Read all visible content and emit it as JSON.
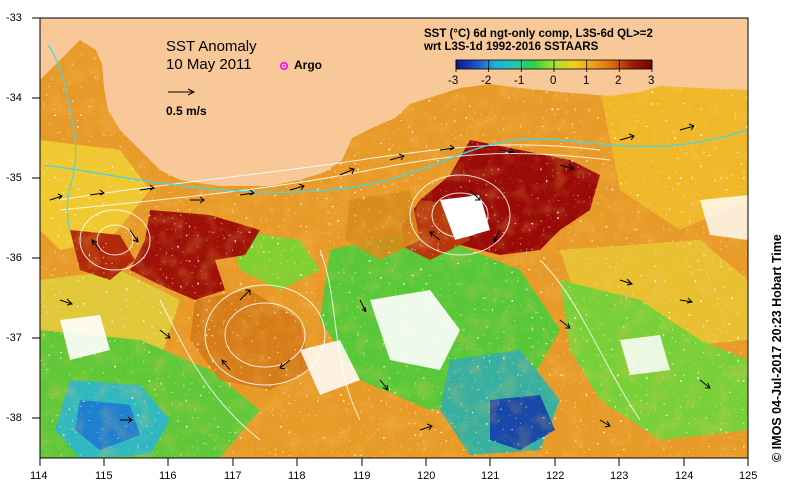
{
  "map": {
    "title": "SST Anomaly",
    "date": "10 May 2011",
    "argo_label": "Argo",
    "velocity_scale_label": "0.5 m/s",
    "product_line": "SST (°C) 6d ngt-only comp, L3S-6d QL>=2",
    "reference_line": "wrt L3S-1d 1992-2016 SSTAARS",
    "credit": "©  IMOS 04-Jul-2017 20:23 Hobart Time",
    "lon_ticks": [
      "114",
      "115",
      "116",
      "117",
      "118",
      "119",
      "120",
      "121",
      "122",
      "123",
      "124",
      "125"
    ],
    "lat_ticks": [
      "-33",
      "-34",
      "-35",
      "-36",
      "-37",
      "-38"
    ],
    "colorbar": {
      "ticks": [
        "-3",
        "-2",
        "-1",
        "0",
        "1",
        "2",
        "3"
      ],
      "stops": [
        "#0a1a8a",
        "#1c50c8",
        "#1fb0d8",
        "#20c8b0",
        "#30d040",
        "#a8e030",
        "#f0d020",
        "#f0a020",
        "#d86a10",
        "#a01a08",
        "#7a0000"
      ]
    },
    "colors": {
      "land": "#f8c898",
      "background": "#ffffff",
      "argo_marker": "#ff00ff"
    }
  }
}
